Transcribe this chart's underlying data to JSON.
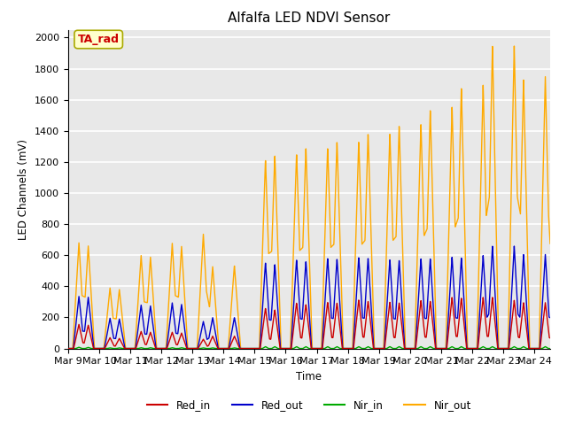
{
  "title": "Alfalfa LED NDVI Sensor",
  "ylabel": "LED Channels (mV)",
  "xlabel": "Time",
  "annotation": "TA_rad",
  "ylim": [
    0,
    2050
  ],
  "xlim": [
    0,
    15.5
  ],
  "x_tick_labels": [
    "Mar 9",
    "Mar 10",
    "Mar 11",
    "Mar 12",
    "Mar 13",
    "Mar 14",
    "Mar 15",
    "Mar 16",
    "Mar 17",
    "Mar 18",
    "Mar 19",
    "Mar 20",
    "Mar 21",
    "Mar 22",
    "Mar 23",
    "Mar 24"
  ],
  "x_tick_positions": [
    0,
    1,
    2,
    3,
    4,
    5,
    6,
    7,
    8,
    9,
    10,
    11,
    12,
    13,
    14,
    15
  ],
  "background_color": "#e8e8e8",
  "grid_color": "#ffffff",
  "colors": {
    "Red_in": "#cc0000",
    "Red_out": "#0000cc",
    "Nir_in": "#00aa00",
    "Nir_out": "#ffaa00"
  },
  "annotation_box_color": "#ffffcc",
  "annotation_border_color": "#aaaa00",
  "annotation_text_color": "#cc0000",
  "nir_out_peaks": [
    680,
    390,
    600,
    680,
    740,
    535,
    1220,
    1260,
    1300,
    1340,
    1390,
    1450,
    1560,
    1700,
    1950,
    1750
  ],
  "nir_out_peaks2": [
    660,
    380,
    590,
    660,
    530,
    0,
    1250,
    1300,
    1340,
    1390,
    1440,
    1540,
    1680,
    1950,
    1730,
    1020
  ],
  "red_out_peaks": [
    335,
    195,
    280,
    295,
    175,
    200,
    555,
    575,
    585,
    590,
    575,
    580,
    590,
    600,
    660,
    605
  ],
  "red_out_peaks2": [
    330,
    190,
    275,
    285,
    200,
    0,
    545,
    565,
    580,
    585,
    570,
    580,
    585,
    660,
    605,
    590
  ],
  "red_in_peaks": [
    155,
    70,
    110,
    105,
    60,
    80,
    260,
    295,
    300,
    315,
    300,
    310,
    330,
    330,
    310,
    295
  ],
  "red_in_peaks2": [
    150,
    65,
    105,
    100,
    80,
    0,
    250,
    285,
    295,
    305,
    295,
    305,
    325,
    330,
    295,
    280
  ],
  "nir_in_peaks": [
    8,
    4,
    5,
    5,
    4,
    4,
    12,
    12,
    12,
    12,
    12,
    12,
    12,
    12,
    12,
    12
  ],
  "nir_in_peaks2": [
    7,
    4,
    5,
    5,
    4,
    0,
    12,
    12,
    12,
    12,
    12,
    12,
    12,
    12,
    12,
    12
  ]
}
